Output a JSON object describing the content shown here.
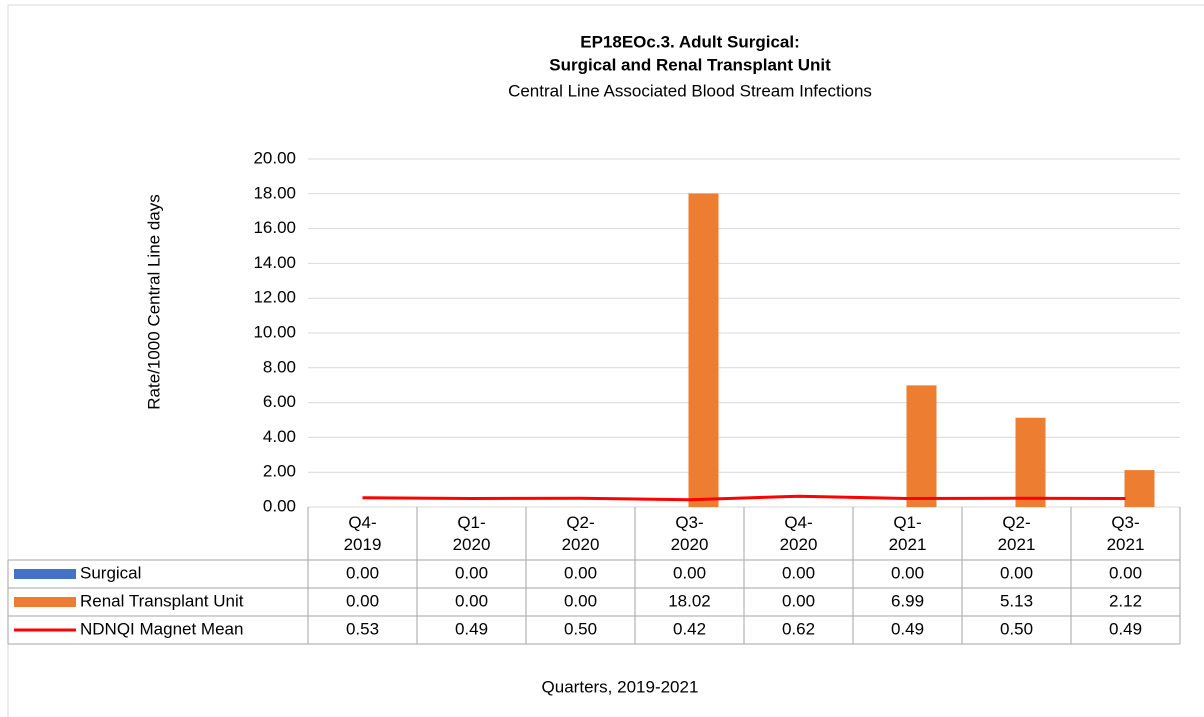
{
  "chart_data": {
    "type": "bar",
    "title": [
      "EP18EOc.3. Adult Surgical:",
      "Surgical and Renal Transplant Unit"
    ],
    "subtitle": "Central Line Associated Blood Stream Infections",
    "y_label": "Rate/1000 Central Line days",
    "x_label": "Quarters, 2019-2021",
    "categories": [
      "Q4-\n2019",
      "Q1-\n2020",
      "Q2-\n2020",
      "Q3-\n2020",
      "Q4-\n2020",
      "Q1-\n2021",
      "Q2-\n2021",
      "Q3-\n2021"
    ],
    "series": [
      {
        "name": "Surgical",
        "color": "#4472c4",
        "kind": "bar",
        "values": [
          0,
          0,
          0,
          0,
          0,
          0,
          0,
          0
        ],
        "value_labels": [
          "0.00",
          "0.00",
          "0.00",
          "0.00",
          "0.00",
          "0.00",
          "0.00",
          "0.00"
        ]
      },
      {
        "name": "Renal Transplant Unit",
        "color": "#ed7d31",
        "kind": "bar",
        "values": [
          0,
          0,
          0,
          18.02,
          0,
          6.99,
          5.13,
          2.12
        ],
        "value_labels": [
          "0.00",
          "0.00",
          "0.00",
          "18.02",
          "0.00",
          "6.99",
          "5.13",
          "2.12"
        ]
      },
      {
        "name": "NDNQI Magnet Mean",
        "color": "#ff0000",
        "kind": "line",
        "values": [
          0.53,
          0.49,
          0.5,
          0.42,
          0.62,
          0.49,
          0.5,
          0.49
        ],
        "value_labels": [
          "0.53",
          "0.49",
          "0.50",
          "0.42",
          "0.62",
          "0.49",
          "0.50",
          "0.49"
        ]
      }
    ],
    "ylim": [
      0,
      20
    ],
    "yticks": [
      {
        "value": 0,
        "label": "0.00"
      },
      {
        "value": 2,
        "label": "2.00"
      },
      {
        "value": 4,
        "label": "4.00"
      },
      {
        "value": 6,
        "label": "6.00"
      },
      {
        "value": 8,
        "label": "8.00"
      },
      {
        "value": 10,
        "label": "10.00"
      },
      {
        "value": 12,
        "label": "12.00"
      },
      {
        "value": 14,
        "label": "14.00"
      },
      {
        "value": 16,
        "label": "16.00"
      },
      {
        "value": 18,
        "label": "18.00"
      },
      {
        "value": 20,
        "label": "20.00"
      }
    ],
    "grid": true
  }
}
